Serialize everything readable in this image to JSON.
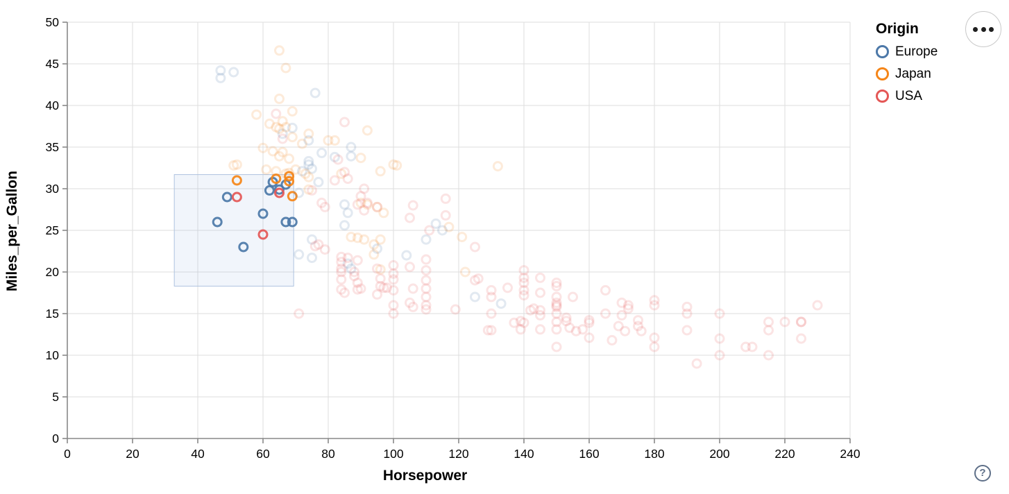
{
  "ui": {
    "actions_button": {
      "icon": "ellipsis"
    },
    "help_button": {
      "glyph": "?"
    }
  },
  "chart_data": {
    "type": "scatter",
    "xlabel": "Horsepower",
    "ylabel": "Miles_per_Gallon",
    "xlim": [
      0,
      240
    ],
    "ylim": [
      0,
      50
    ],
    "x_ticks": [
      0,
      20,
      40,
      60,
      80,
      100,
      120,
      140,
      160,
      180,
      200,
      220,
      240
    ],
    "y_ticks": [
      0,
      5,
      10,
      15,
      20,
      25,
      30,
      35,
      40,
      45,
      50
    ],
    "grid": true,
    "grid_color": "#dddddd",
    "axis_color": "#888888",
    "label_color": "#000000",
    "legend": {
      "title": "Origin",
      "position": "top-right",
      "entries": [
        {
          "label": "Europe",
          "color": "#4c78a8"
        },
        {
          "label": "Japan",
          "color": "#f58518"
        },
        {
          "label": "USA",
          "color": "#e45756"
        }
      ]
    },
    "origin_colors": {
      "E": "#4c78a8",
      "J": "#f58518",
      "U": "#e45756"
    },
    "brush": {
      "x": [
        32.8,
        69.4
      ],
      "y": [
        18.3,
        31.7
      ],
      "fill": "rgba(120,160,215,0.10)",
      "stroke": "#aec3e0"
    },
    "point_style": {
      "radius": 6,
      "stroke_width": 3,
      "faded_opacity": 0.16,
      "selected_opacity": 0.92
    },
    "points": [
      [
        46,
        26,
        "E",
        1
      ],
      [
        49,
        29,
        "E",
        1
      ],
      [
        54,
        23,
        "E",
        1
      ],
      [
        60,
        27,
        "E",
        1
      ],
      [
        62,
        29.8,
        "E",
        1
      ],
      [
        63,
        30.8,
        "E",
        1
      ],
      [
        65,
        29.9,
        "E",
        1
      ],
      [
        67,
        30.5,
        "E",
        1
      ],
      [
        67,
        26,
        "E",
        1
      ],
      [
        69,
        26,
        "E",
        1
      ],
      [
        52,
        31,
        "J",
        1
      ],
      [
        64,
        31.2,
        "J",
        1
      ],
      [
        68,
        31.5,
        "J",
        1
      ],
      [
        68,
        30.9,
        "J",
        1
      ],
      [
        69,
        29.1,
        "J",
        1
      ],
      [
        52,
        29,
        "U",
        1
      ],
      [
        60,
        24.5,
        "U",
        1
      ],
      [
        65,
        29.5,
        "U",
        1
      ],
      [
        47,
        44.2,
        "E",
        0
      ],
      [
        47,
        43.3,
        "E",
        0
      ],
      [
        51,
        44,
        "E",
        0
      ],
      [
        76,
        41.5,
        "E",
        0
      ],
      [
        69,
        37.3,
        "E",
        0
      ],
      [
        66,
        36.6,
        "E",
        0
      ],
      [
        74,
        35.8,
        "E",
        0
      ],
      [
        87,
        35,
        "E",
        0
      ],
      [
        78,
        34.3,
        "E",
        0
      ],
      [
        87,
        33.9,
        "E",
        0
      ],
      [
        82,
        33.8,
        "E",
        0
      ],
      [
        74,
        33.3,
        "E",
        0
      ],
      [
        72,
        32.1,
        "E",
        0
      ],
      [
        75,
        32.4,
        "E",
        0
      ],
      [
        74,
        32.9,
        "E",
        0
      ],
      [
        77,
        30.8,
        "E",
        0
      ],
      [
        71,
        29.5,
        "E",
        0
      ],
      [
        85,
        28.1,
        "E",
        0
      ],
      [
        86,
        27.1,
        "E",
        0
      ],
      [
        85,
        25.6,
        "E",
        0
      ],
      [
        113,
        25.8,
        "E",
        0
      ],
      [
        115,
        25,
        "E",
        0
      ],
      [
        110,
        23.9,
        "E",
        0
      ],
      [
        104,
        22,
        "E",
        0
      ],
      [
        86,
        21,
        "E",
        0
      ],
      [
        87,
        20.4,
        "E",
        0
      ],
      [
        75,
        23.9,
        "E",
        0
      ],
      [
        75,
        21.7,
        "E",
        0
      ],
      [
        71,
        22.1,
        "E",
        0
      ],
      [
        95,
        22.8,
        "E",
        0
      ],
      [
        125,
        17,
        "E",
        0
      ],
      [
        133,
        16.2,
        "E",
        0
      ],
      [
        65,
        46.6,
        "J",
        0
      ],
      [
        67,
        44.5,
        "J",
        0
      ],
      [
        65,
        40.8,
        "J",
        0
      ],
      [
        69,
        39.3,
        "J",
        0
      ],
      [
        58,
        38.9,
        "J",
        0
      ],
      [
        66,
        38.1,
        "J",
        0
      ],
      [
        62,
        37.8,
        "J",
        0
      ],
      [
        64,
        37.4,
        "J",
        0
      ],
      [
        67,
        37.4,
        "J",
        0
      ],
      [
        65,
        37.2,
        "J",
        0
      ],
      [
        92,
        37,
        "J",
        0
      ],
      [
        74,
        36.6,
        "J",
        0
      ],
      [
        69,
        36.2,
        "J",
        0
      ],
      [
        72,
        35.4,
        "J",
        0
      ],
      [
        80,
        35.8,
        "J",
        0
      ],
      [
        82,
        35.8,
        "J",
        0
      ],
      [
        60,
        34.9,
        "J",
        0
      ],
      [
        63,
        34.5,
        "J",
        0
      ],
      [
        65,
        33.9,
        "J",
        0
      ],
      [
        66,
        34.4,
        "J",
        0
      ],
      [
        68,
        33.6,
        "J",
        0
      ],
      [
        90,
        33.7,
        "J",
        0
      ],
      [
        100,
        32.9,
        "J",
        0
      ],
      [
        96,
        32.1,
        "J",
        0
      ],
      [
        101,
        32.8,
        "J",
        0
      ],
      [
        132,
        32.7,
        "J",
        0
      ],
      [
        52,
        32.9,
        "J",
        0
      ],
      [
        51,
        32.8,
        "J",
        0
      ],
      [
        61,
        32.3,
        "J",
        0
      ],
      [
        64,
        32.1,
        "J",
        0
      ],
      [
        67,
        31.8,
        "J",
        0
      ],
      [
        68,
        31.9,
        "J",
        0
      ],
      [
        70,
        32.3,
        "J",
        0
      ],
      [
        73,
        31.8,
        "J",
        0
      ],
      [
        74,
        31.4,
        "J",
        0
      ],
      [
        84,
        31.8,
        "J",
        0
      ],
      [
        74,
        29.9,
        "J",
        0
      ],
      [
        90,
        28.3,
        "J",
        0
      ],
      [
        92,
        28.1,
        "J",
        0
      ],
      [
        95,
        27.8,
        "J",
        0
      ],
      [
        97,
        27.1,
        "J",
        0
      ],
      [
        87,
        24.2,
        "J",
        0
      ],
      [
        89,
        24.1,
        "J",
        0
      ],
      [
        91,
        23.9,
        "J",
        0
      ],
      [
        96,
        23.9,
        "J",
        0
      ],
      [
        94,
        23.3,
        "J",
        0
      ],
      [
        94,
        22.1,
        "J",
        0
      ],
      [
        96,
        20.3,
        "J",
        0
      ],
      [
        117,
        25.4,
        "J",
        0
      ],
      [
        121,
        24.2,
        "J",
        0
      ],
      [
        122,
        20,
        "J",
        0
      ],
      [
        64,
        39,
        "U",
        0
      ],
      [
        85,
        38,
        "U",
        0
      ],
      [
        66,
        36,
        "U",
        0
      ],
      [
        83,
        33.5,
        "U",
        0
      ],
      [
        85,
        32,
        "U",
        0
      ],
      [
        82,
        31,
        "U",
        0
      ],
      [
        86,
        31.2,
        "U",
        0
      ],
      [
        91,
        30,
        "U",
        0
      ],
      [
        90,
        29.1,
        "U",
        0
      ],
      [
        92,
        28.3,
        "U",
        0
      ],
      [
        95,
        27.8,
        "U",
        0
      ],
      [
        91,
        27.4,
        "U",
        0
      ],
      [
        89,
        28.1,
        "U",
        0
      ],
      [
        75,
        29.8,
        "U",
        0
      ],
      [
        78,
        28.3,
        "U",
        0
      ],
      [
        79,
        27.8,
        "U",
        0
      ],
      [
        106,
        28,
        "U",
        0
      ],
      [
        105,
        26.5,
        "U",
        0
      ],
      [
        116,
        28.8,
        "U",
        0
      ],
      [
        116,
        26.8,
        "U",
        0
      ],
      [
        111,
        25,
        "U",
        0
      ],
      [
        125,
        23,
        "U",
        0
      ],
      [
        79,
        22.7,
        "U",
        0
      ],
      [
        77,
        23.3,
        "U",
        0
      ],
      [
        76,
        23.1,
        "U",
        0
      ],
      [
        84,
        21.8,
        "U",
        0
      ],
      [
        86,
        21.7,
        "U",
        0
      ],
      [
        89,
        21.4,
        "U",
        0
      ],
      [
        84,
        21.2,
        "U",
        0
      ],
      [
        84,
        20.4,
        "U",
        0
      ],
      [
        84,
        20,
        "U",
        0
      ],
      [
        84,
        19.1,
        "U",
        0
      ],
      [
        84,
        17.9,
        "U",
        0
      ],
      [
        85,
        17.5,
        "U",
        0
      ],
      [
        88,
        20,
        "U",
        0
      ],
      [
        88,
        19.5,
        "U",
        0
      ],
      [
        89,
        18.7,
        "U",
        0
      ],
      [
        89,
        17.9,
        "U",
        0
      ],
      [
        90,
        18,
        "U",
        0
      ],
      [
        95,
        20.4,
        "U",
        0
      ],
      [
        96,
        19.2,
        "U",
        0
      ],
      [
        96,
        18.3,
        "U",
        0
      ],
      [
        95,
        17.3,
        "U",
        0
      ],
      [
        97,
        18.1,
        "U",
        0
      ],
      [
        98,
        18.1,
        "U",
        0
      ],
      [
        100,
        20.8,
        "U",
        0
      ],
      [
        100,
        19.8,
        "U",
        0
      ],
      [
        100,
        19.1,
        "U",
        0
      ],
      [
        100,
        17.8,
        "U",
        0
      ],
      [
        100,
        16,
        "U",
        0
      ],
      [
        100,
        15,
        "U",
        0
      ],
      [
        105,
        20.6,
        "U",
        0
      ],
      [
        106,
        18,
        "U",
        0
      ],
      [
        105,
        16.3,
        "U",
        0
      ],
      [
        106,
        15.8,
        "U",
        0
      ],
      [
        110,
        21.5,
        "U",
        0
      ],
      [
        110,
        20.2,
        "U",
        0
      ],
      [
        110,
        19,
        "U",
        0
      ],
      [
        110,
        18,
        "U",
        0
      ],
      [
        110,
        17,
        "U",
        0
      ],
      [
        110,
        16,
        "U",
        0
      ],
      [
        110,
        15.5,
        "U",
        0
      ],
      [
        119,
        15.5,
        "U",
        0
      ],
      [
        125,
        19,
        "U",
        0
      ],
      [
        126,
        19.2,
        "U",
        0
      ],
      [
        130,
        17.8,
        "U",
        0
      ],
      [
        130,
        17,
        "U",
        0
      ],
      [
        130,
        15,
        "U",
        0
      ],
      [
        130,
        13,
        "U",
        0
      ],
      [
        129,
        13,
        "U",
        0
      ],
      [
        135,
        18.1,
        "U",
        0
      ],
      [
        137,
        13.9,
        "U",
        0
      ],
      [
        139,
        14.1,
        "U",
        0
      ],
      [
        140,
        13.9,
        "U",
        0
      ],
      [
        139,
        13.1,
        "U",
        0
      ],
      [
        140,
        20.2,
        "U",
        0
      ],
      [
        140,
        19.3,
        "U",
        0
      ],
      [
        140,
        18.7,
        "U",
        0
      ],
      [
        140,
        17.8,
        "U",
        0
      ],
      [
        140,
        17.2,
        "U",
        0
      ],
      [
        142,
        15.4,
        "U",
        0
      ],
      [
        143,
        15.6,
        "U",
        0
      ],
      [
        145,
        14.8,
        "U",
        0
      ],
      [
        145,
        13.1,
        "U",
        0
      ],
      [
        145,
        19.3,
        "U",
        0
      ],
      [
        145,
        17.5,
        "U",
        0
      ],
      [
        145,
        15.4,
        "U",
        0
      ],
      [
        150,
        18.7,
        "U",
        0
      ],
      [
        150,
        18.3,
        "U",
        0
      ],
      [
        150,
        17,
        "U",
        0
      ],
      [
        150,
        16.3,
        "U",
        0
      ],
      [
        150,
        16,
        "U",
        0
      ],
      [
        150,
        15.8,
        "U",
        0
      ],
      [
        150,
        15,
        "U",
        0
      ],
      [
        150,
        14,
        "U",
        0
      ],
      [
        150,
        13.1,
        "U",
        0
      ],
      [
        150,
        11,
        "U",
        0
      ],
      [
        153,
        14.5,
        "U",
        0
      ],
      [
        153,
        14.1,
        "U",
        0
      ],
      [
        155,
        17,
        "U",
        0
      ],
      [
        154,
        13.3,
        "U",
        0
      ],
      [
        156,
        12.9,
        "U",
        0
      ],
      [
        158,
        13.1,
        "U",
        0
      ],
      [
        160,
        14.2,
        "U",
        0
      ],
      [
        160,
        13.9,
        "U",
        0
      ],
      [
        160,
        12.1,
        "U",
        0
      ],
      [
        165,
        17.8,
        "U",
        0
      ],
      [
        165,
        15,
        "U",
        0
      ],
      [
        167,
        11.8,
        "U",
        0
      ],
      [
        169,
        13.5,
        "U",
        0
      ],
      [
        170,
        14.8,
        "U",
        0
      ],
      [
        170,
        16.3,
        "U",
        0
      ],
      [
        172,
        16,
        "U",
        0
      ],
      [
        172,
        15.6,
        "U",
        0
      ],
      [
        175,
        14.2,
        "U",
        0
      ],
      [
        175,
        13.5,
        "U",
        0
      ],
      [
        171,
        12.9,
        "U",
        0
      ],
      [
        176,
        12.9,
        "U",
        0
      ],
      [
        180,
        16.6,
        "U",
        0
      ],
      [
        180,
        16,
        "U",
        0
      ],
      [
        180,
        12.1,
        "U",
        0
      ],
      [
        180,
        11,
        "U",
        0
      ],
      [
        190,
        15.8,
        "U",
        0
      ],
      [
        190,
        15,
        "U",
        0
      ],
      [
        190,
        13,
        "U",
        0
      ],
      [
        193,
        9,
        "U",
        0
      ],
      [
        200,
        15,
        "U",
        0
      ],
      [
        200,
        12,
        "U",
        0
      ],
      [
        200,
        10,
        "U",
        0
      ],
      [
        208,
        11,
        "U",
        0
      ],
      [
        210,
        11,
        "U",
        0
      ],
      [
        215,
        14,
        "U",
        0
      ],
      [
        215,
        13,
        "U",
        0
      ],
      [
        215,
        10,
        "U",
        0
      ],
      [
        220,
        14,
        "U",
        0
      ],
      [
        225,
        14,
        "U",
        0
      ],
      [
        225,
        14,
        "U",
        0
      ],
      [
        225,
        12,
        "U",
        0
      ],
      [
        230,
        16,
        "U",
        0
      ],
      [
        71,
        15,
        "U",
        0
      ]
    ]
  }
}
